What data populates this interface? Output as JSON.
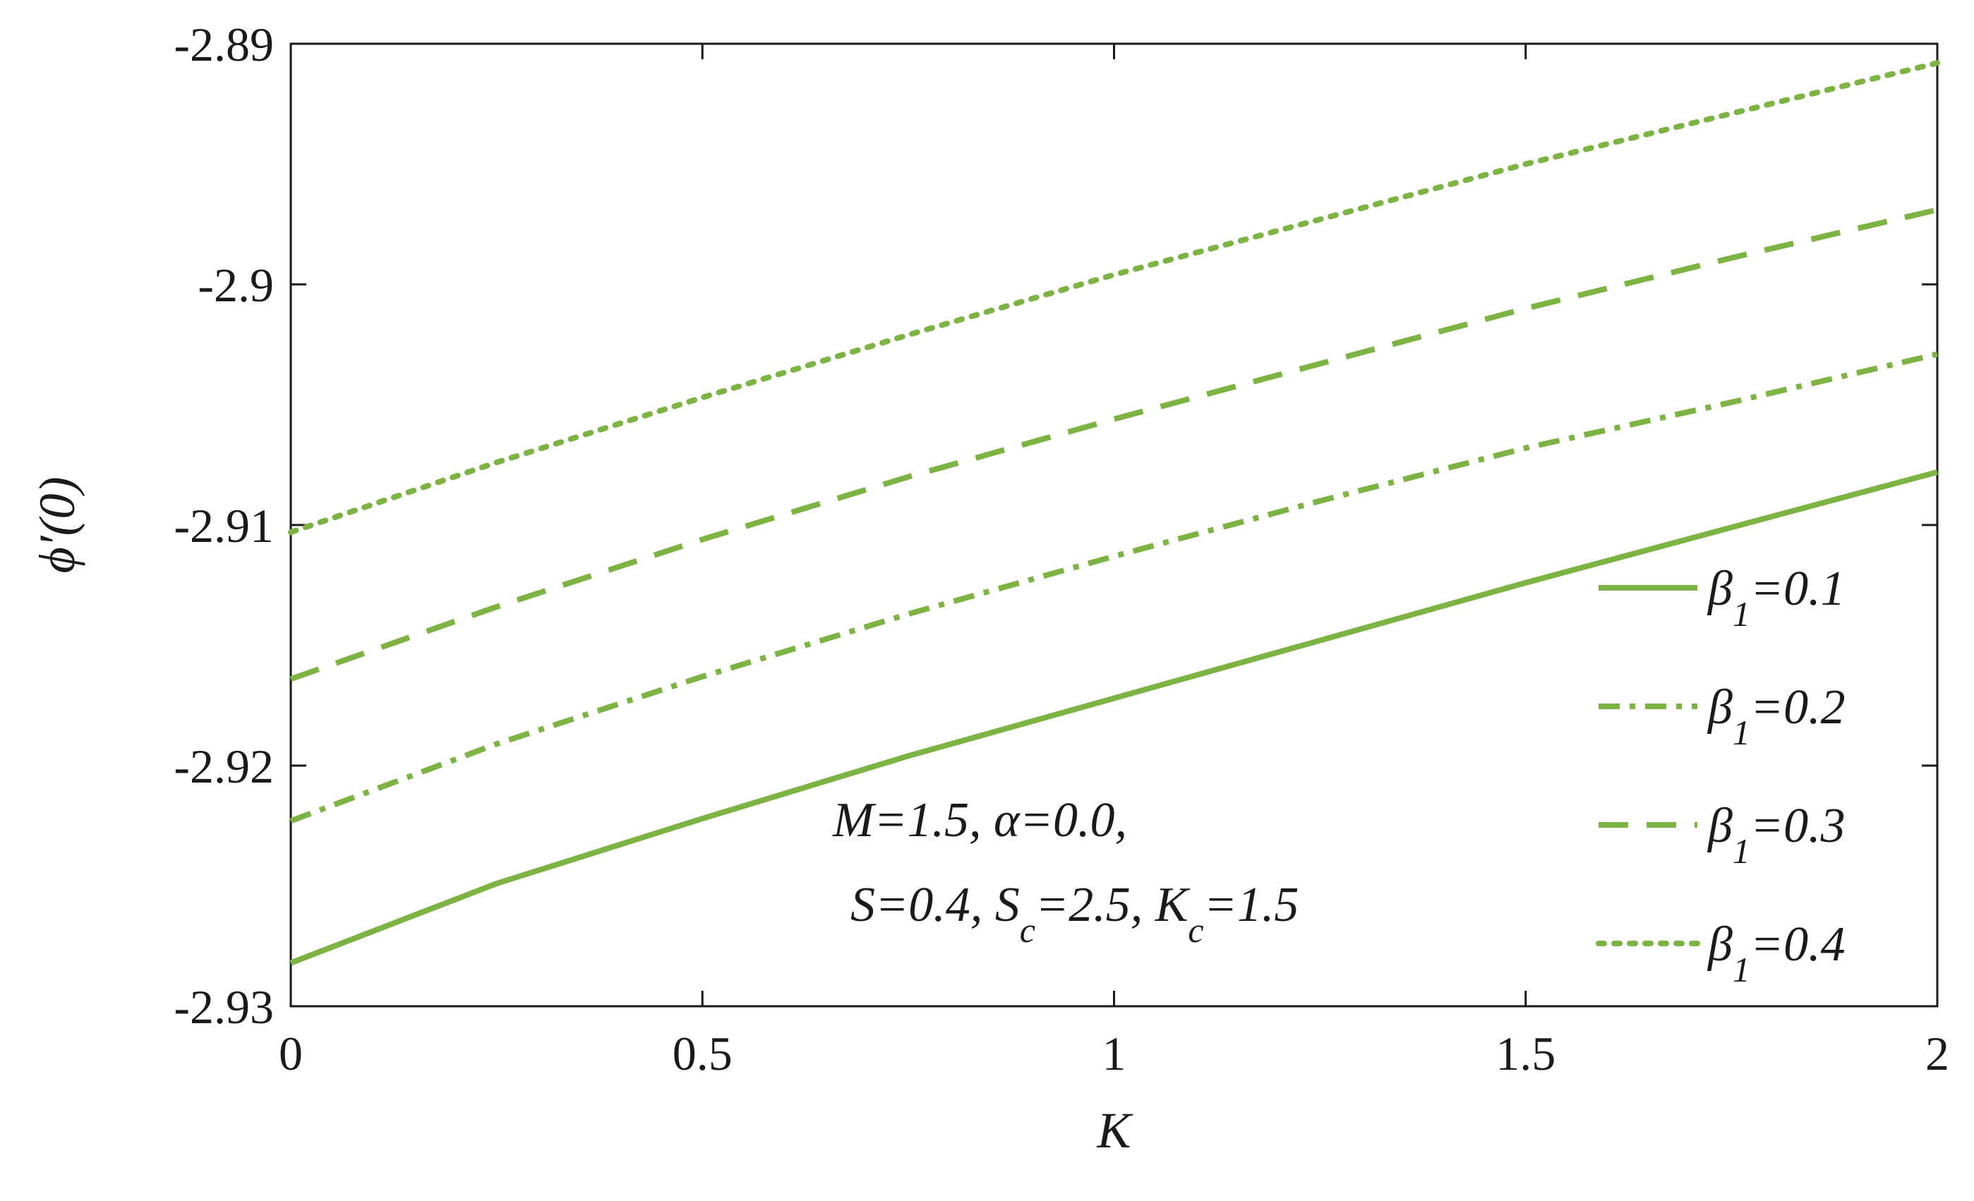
{
  "chart_data": {
    "type": "line",
    "xlabel": "K",
    "ylabel": "ϕ′(0)",
    "xlim": [
      0,
      2
    ],
    "ylim": [
      -2.93,
      -2.89
    ],
    "xticks": [
      0,
      0.5,
      1,
      1.5,
      2
    ],
    "xtick_labels": [
      "0",
      "0.5",
      "1",
      "1.5",
      "2"
    ],
    "yticks": [
      -2.93,
      -2.92,
      -2.91,
      -2.9,
      -2.89
    ],
    "ytick_labels": [
      "-2.93",
      "-2.92",
      "-2.91",
      "-2.9",
      "-2.89"
    ],
    "grid": false,
    "legend_position": "right",
    "x": [
      0,
      0.25,
      0.5,
      0.75,
      1.0,
      1.25,
      1.5,
      1.75,
      2.0
    ],
    "series": [
      {
        "name": "β1=0.1",
        "symbol": "β",
        "sub": "1",
        "value": "=0.1",
        "style": "solid",
        "values": [
          -2.9282,
          -2.9249,
          -2.9222,
          -2.9196,
          -2.9172,
          -2.9148,
          -2.9124,
          -2.9101,
          -2.9078
        ]
      },
      {
        "name": "β1=0.2",
        "symbol": "β",
        "sub": "1",
        "value": "=0.2",
        "style": "dashdot",
        "values": [
          -2.9223,
          -2.9191,
          -2.9163,
          -2.9137,
          -2.9113,
          -2.909,
          -2.9068,
          -2.9049,
          -2.9029
        ]
      },
      {
        "name": "β1=0.3",
        "symbol": "β",
        "sub": "1",
        "value": "=0.3",
        "style": "dashed",
        "values": [
          -2.9164,
          -2.9134,
          -2.9106,
          -2.908,
          -2.9056,
          -2.9033,
          -2.901,
          -2.8989,
          -2.8969
        ]
      },
      {
        "name": "β1=0.4",
        "symbol": "β",
        "sub": "1",
        "value": "=0.4",
        "style": "dotted",
        "values": [
          -2.9103,
          -2.9074,
          -2.9047,
          -2.9021,
          -2.8996,
          -2.8973,
          -2.895,
          -2.8929,
          -2.8908
        ]
      }
    ],
    "annotation": {
      "line1": "M=1.5, α=0.0,",
      "line2_parts": [
        "S=0.4, S",
        "c",
        "=2.5, K",
        "c",
        "=1.5"
      ]
    },
    "colors": {
      "line": "#7cb342",
      "axis": "#1a1a1a"
    }
  }
}
